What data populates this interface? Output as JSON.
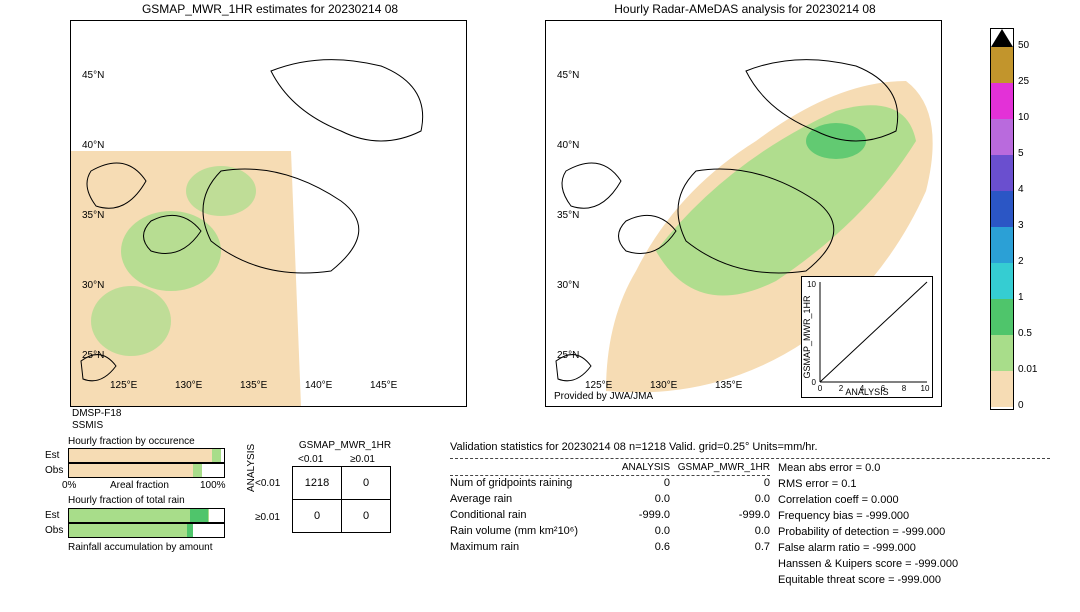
{
  "colors": {
    "land_fill": "#ffffff",
    "sea_no_data": "#ffffff",
    "r0": "#f6dcb4",
    "r0p5": "#a8dd8a",
    "r1": "#4fc56b",
    "r2": "#35cdd2",
    "r3": "#2ba0d6",
    "r4": "#2b56c5",
    "r5": "#6a4fcf",
    "r10": "#b96add",
    "r25": "#e331d7",
    "r50": "#c2952c",
    "outline": "#000000",
    "grid": "#cccccc",
    "est_fill": "#f6dcb4",
    "est_edge": "#a8dd8a",
    "obs_fill": "#a8dd8a",
    "obs_dark": "#4fc56b"
  },
  "left_map": {
    "title": "GSMAP_MWR_1HR estimates for 20230214 08",
    "lat_ticks": [
      "25°N",
      "30°N",
      "35°N",
      "40°N",
      "45°N"
    ],
    "lon_ticks": [
      "125°E",
      "130°E",
      "135°E",
      "140°E",
      "145°E"
    ],
    "footer1": "DMSP-F18",
    "footer2": "SSMIS"
  },
  "right_map": {
    "title": "Hourly Radar-AMeDAS analysis for 20230214 08",
    "lat_ticks": [
      "25°N",
      "30°N",
      "35°N",
      "40°N",
      "45°N"
    ],
    "lon_ticks": [
      "125°E",
      "130°E",
      "135°E"
    ],
    "provided": "Provided by JWA/JMA"
  },
  "scatter": {
    "xlabel": "ANALYSIS",
    "ylabel": "GSMAP_MWR_1HR",
    "ticks": [
      "0",
      "2",
      "4",
      "6",
      "8",
      "10"
    ],
    "ylim": [
      0,
      10
    ],
    "xlim": [
      0,
      10
    ]
  },
  "colorbar_labels": [
    "0",
    "0.01",
    "0.5",
    "1",
    "2",
    "3",
    "4",
    "5",
    "10",
    "25",
    "50"
  ],
  "bars": {
    "title1": "Hourly fraction by occurence",
    "title2": "Hourly fraction of total rain",
    "title3": "Rainfall accumulation by amount",
    "xleft": "0%",
    "xmid": "Areal fraction",
    "xright": "100%",
    "est_label": "Est",
    "obs_label": "Obs",
    "occ_est_pct": 92,
    "occ_est_green": 6,
    "occ_obs_pct": 80,
    "occ_obs_green": 6,
    "tot_est_pct": 90,
    "tot_est_dark": 12,
    "tot_obs_pct": 80,
    "tot_obs_dark": 4
  },
  "confusion": {
    "col_title": "GSMAP_MWR_1HR",
    "row_title": "ANALYSIS",
    "col1": "<0.01",
    "col2": "≥0.01",
    "row1": "<0.01",
    "row2": "≥0.01",
    "v11": "1218",
    "v12": "0",
    "v21": "0",
    "v22": "0"
  },
  "validation": {
    "header": "Validation statistics for 20230214 08  n=1218 Valid. grid=0.25° Units=mm/hr.",
    "col1": "ANALYSIS",
    "col2": "GSMAP_MWR_1HR",
    "rows_left": [
      {
        "label": "Num of gridpoints raining",
        "a": "0",
        "b": "0"
      },
      {
        "label": "Average rain",
        "a": "0.0",
        "b": "0.0"
      },
      {
        "label": "Conditional rain",
        "a": "-999.0",
        "b": "-999.0"
      },
      {
        "label": "Rain volume (mm km²10⁶)",
        "a": "0.0",
        "b": "0.0"
      },
      {
        "label": "Maximum rain",
        "a": "0.6",
        "b": "0.7"
      }
    ],
    "rows_right": [
      "Mean abs error =    0.0",
      "RMS error =    0.1",
      "Correlation coeff =  0.000",
      "Frequency bias = -999.000",
      "Probability of detection =  -999.000",
      "False alarm ratio = -999.000",
      "Hanssen & Kuipers score = -999.000",
      "Equitable threat score = -999.000"
    ]
  }
}
